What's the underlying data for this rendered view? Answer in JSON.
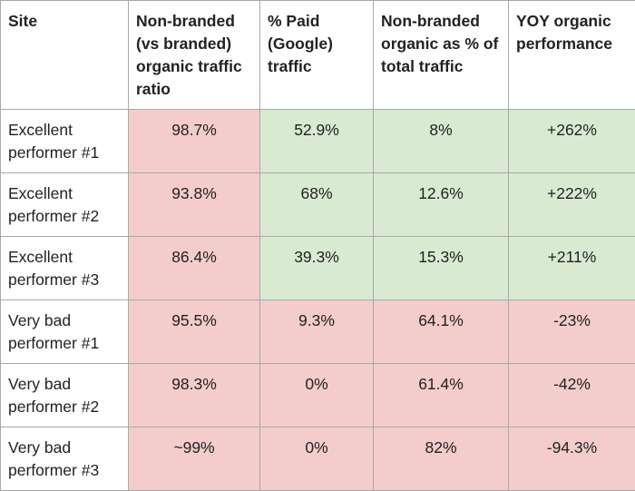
{
  "table": {
    "header": [
      "Site",
      "Non-branded (vs branded) organic traffic ratio",
      "% Paid (Google) traffic",
      "Non-branded organic as % of total traffic",
      "YOY organic performance"
    ],
    "rows": [
      [
        "Excellent performer #1",
        "98.7%",
        "52.9%",
        "8%",
        "+262%"
      ],
      [
        "Excellent performer #2",
        "93.8%",
        "68%",
        "12.6%",
        "+222%"
      ],
      [
        "Excellent performer #3",
        "86.4%",
        "39.3%",
        "15.3%",
        "+211%"
      ],
      [
        "Very bad performer #1",
        "95.5%",
        "9.3%",
        "64.1%",
        "-23%"
      ],
      [
        "Very bad performer #2",
        "98.3%",
        "0%",
        "61.4%",
        "-42%"
      ],
      [
        "Very bad performer #3",
        "~99%",
        "0%",
        "82%",
        "-94.3%"
      ]
    ]
  }
}
